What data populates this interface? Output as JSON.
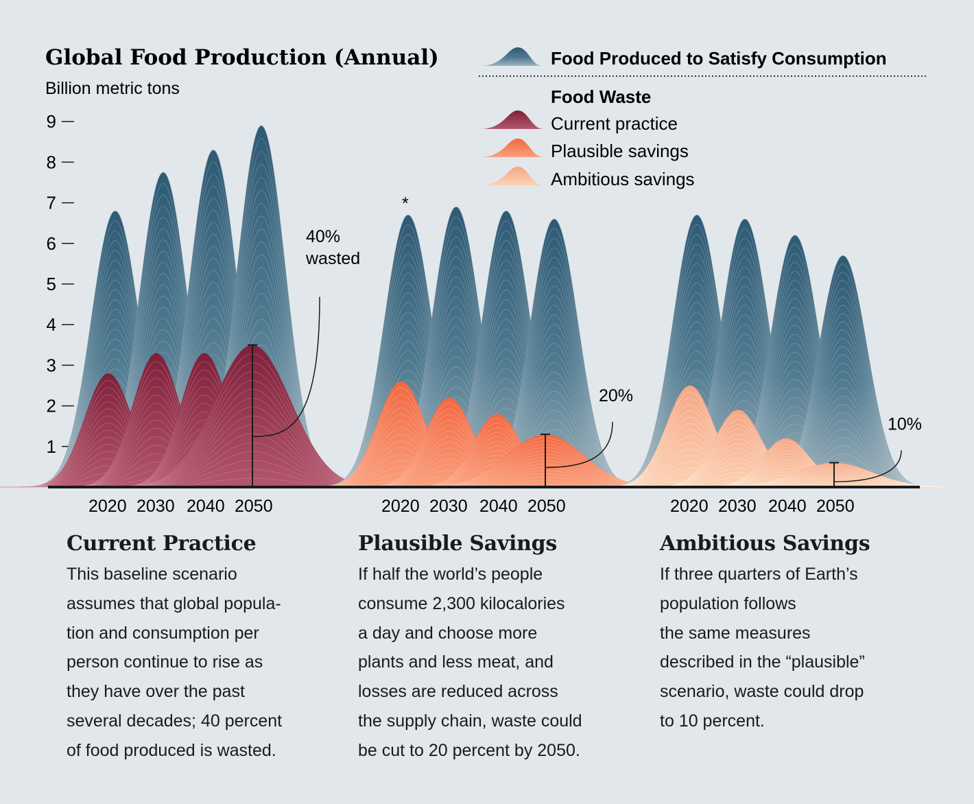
{
  "title": "Global Food Production (Annual)",
  "subtitle": "Billion metric tons",
  "asterisk": "*",
  "colors": {
    "background": "#e1e7eb",
    "consumption_light": "#9fb2bc",
    "consumption_dark": "#2f5a74",
    "current_practice": "#8c2742",
    "plausible_savings": "#f4734e",
    "ambitious_savings": "#f7b08e",
    "axis": "#1a1a1a"
  },
  "legend": {
    "consumption_label": "Food Produced to Satisfy Consumption",
    "waste_heading": "Food Waste",
    "items": [
      {
        "label": "Current practice",
        "color": "#8c2742"
      },
      {
        "label": "Plausible savings",
        "color": "#f4734e"
      },
      {
        "label": "Ambitious savings",
        "color": "#f7b08e"
      }
    ]
  },
  "chart_data": {
    "type": "area",
    "title": "Global Food Production (Annual)",
    "ylabel": "Billion metric tons",
    "ylim": [
      0,
      9
    ],
    "yticks": [
      1,
      2,
      3,
      4,
      5,
      6,
      7,
      8,
      9
    ],
    "groups": [
      {
        "name": "Current Practice",
        "years": [
          "2020",
          "2030",
          "2040",
          "2050"
        ],
        "total_production": [
          6.8,
          7.75,
          8.3,
          8.9
        ],
        "food_waste": [
          2.8,
          3.3,
          3.3,
          3.5
        ],
        "waste_color": "#8c2742",
        "annotation": {
          "label": [
            "40%",
            "wasted"
          ],
          "year": "2050",
          "percent": 40
        }
      },
      {
        "name": "Plausible Savings",
        "years": [
          "2020",
          "2030",
          "2040",
          "2050"
        ],
        "total_production": [
          6.7,
          6.9,
          6.8,
          6.6
        ],
        "food_waste": [
          2.6,
          2.2,
          1.8,
          1.3
        ],
        "waste_color": "#f4734e",
        "annotation": {
          "label": [
            "20%"
          ],
          "year": "2050",
          "percent": 20
        }
      },
      {
        "name": "Ambitious Savings",
        "years": [
          "2020",
          "2030",
          "2040",
          "2050"
        ],
        "total_production": [
          6.7,
          6.6,
          6.2,
          5.7
        ],
        "food_waste": [
          2.5,
          1.9,
          1.2,
          0.6
        ],
        "waste_color": "#f7b08e",
        "annotation": {
          "label": [
            "10%"
          ],
          "year": "2050",
          "percent": 10
        }
      }
    ]
  },
  "panels": [
    {
      "heading": "Current Practice",
      "lines": [
        "This baseline scenario",
        "assumes that global popula-",
        "tion and consumption per",
        "person continue to rise as",
        "they have over the past",
        "several decades; 40 percent",
        "of food produced is wasted."
      ]
    },
    {
      "heading": "Plausible Savings",
      "lines": [
        "If half the world’s people",
        "consume 2,300 kilocalories",
        "a day and choose more",
        "plants and less meat, and",
        "losses are reduced across",
        "the supply chain, waste could",
        "be cut to 20 percent by 2050."
      ]
    },
    {
      "heading": "Ambitious Savings",
      "lines": [
        "If three quarters of Earth’s",
        "population follows",
        "the same measures",
        "described in the “plausible”",
        "scenario, waste could drop",
        "to 10 percent."
      ]
    }
  ]
}
